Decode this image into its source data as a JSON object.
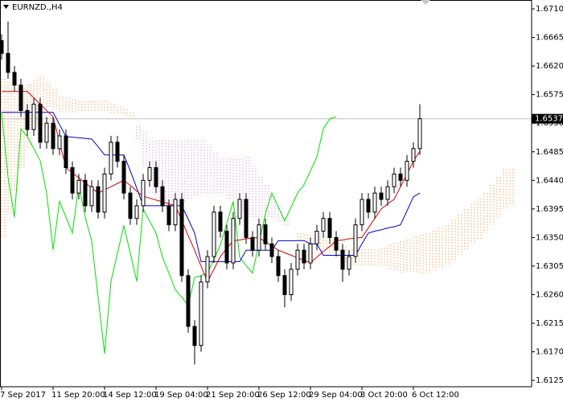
{
  "chart_data": {
    "type": "candlestick",
    "title": "EURNZD.,H4",
    "categories": [
      "7 Sep 2017",
      null,
      null,
      null,
      null,
      null,
      null,
      null,
      "11 Sep 20:00",
      null,
      null,
      null,
      null,
      null,
      null,
      null,
      "14 Sep 12:00",
      null,
      null,
      null,
      null,
      null,
      null,
      null,
      "19 Sep 04:00",
      null,
      null,
      null,
      null,
      null,
      null,
      null,
      "21 Sep 20:00",
      null,
      null,
      null,
      null,
      null,
      null,
      null,
      "26 Sep 12:00",
      null,
      null,
      null,
      null,
      null,
      null,
      null,
      "29 Sep 04:00",
      null,
      null,
      null,
      null,
      null,
      null,
      null,
      "3 Oct 20:00",
      null,
      null,
      null,
      null,
      null,
      null,
      null,
      "6 Oct 12:00",
      null,
      null,
      null,
      null,
      null,
      null,
      null,
      null,
      null,
      null,
      null,
      null,
      null,
      null,
      null
    ],
    "open": [
      1.666,
      1.664,
      1.661,
      1.659,
      1.655,
      1.652,
      1.656,
      1.65,
      1.653,
      1.649,
      1.651,
      1.646,
      1.642,
      1.644,
      1.64,
      1.643,
      1.639,
      1.645,
      1.65,
      1.647,
      1.642,
      1.638,
      1.64,
      1.644,
      1.646,
      1.643,
      1.64,
      1.637,
      1.641,
      1.629,
      1.621,
      1.618,
      1.628,
      1.632,
      1.639,
      1.636,
      1.631,
      1.638,
      1.641,
      1.635,
      1.633,
      1.637,
      1.634,
      1.632,
      1.629,
      1.626,
      1.63,
      1.633,
      1.631,
      1.634,
      1.636,
      1.638,
      1.635,
      1.633,
      1.63,
      1.632,
      1.637,
      1.641,
      1.639,
      1.642,
      1.641,
      1.643,
      1.645,
      1.644,
      1.647,
      1.649,
      null,
      null,
      null,
      null,
      null,
      null,
      null,
      null,
      null,
      null,
      null,
      null,
      null,
      null
    ],
    "high": [
      1.667,
      1.669,
      1.662,
      1.66,
      1.656,
      1.657,
      1.657,
      1.654,
      1.654,
      1.652,
      1.652,
      1.647,
      1.645,
      1.645,
      1.644,
      1.644,
      1.646,
      1.651,
      1.651,
      1.648,
      1.643,
      1.641,
      1.645,
      1.647,
      1.647,
      1.644,
      1.641,
      1.642,
      1.642,
      1.63,
      1.622,
      1.629,
      1.633,
      1.64,
      1.64,
      1.637,
      1.639,
      1.642,
      1.642,
      1.636,
      1.638,
      1.638,
      1.635,
      1.633,
      1.63,
      1.631,
      1.634,
      1.634,
      1.635,
      1.637,
      1.639,
      1.639,
      1.636,
      1.634,
      1.633,
      1.638,
      1.642,
      1.642,
      1.643,
      1.643,
      1.644,
      1.646,
      1.646,
      1.648,
      1.65,
      1.656,
      null,
      null,
      null,
      null,
      null,
      null,
      null,
      null,
      null,
      null,
      null,
      null,
      null,
      null
    ],
    "low": [
      1.663,
      1.66,
      1.658,
      1.654,
      1.651,
      1.651,
      1.649,
      1.649,
      1.648,
      1.648,
      1.645,
      1.641,
      1.641,
      1.639,
      1.639,
      1.638,
      1.638,
      1.644,
      1.646,
      1.641,
      1.637,
      1.637,
      1.639,
      1.643,
      1.642,
      1.639,
      1.636,
      1.636,
      1.628,
      1.62,
      1.615,
      1.617,
      1.627,
      1.631,
      1.635,
      1.63,
      1.63,
      1.637,
      1.634,
      1.632,
      1.632,
      1.633,
      1.631,
      1.628,
      1.624,
      1.625,
      1.629,
      1.63,
      1.63,
      1.633,
      1.635,
      1.634,
      1.632,
      1.628,
      1.629,
      1.631,
      1.636,
      1.638,
      1.638,
      1.64,
      1.64,
      1.642,
      1.643,
      1.643,
      1.646,
      1.648,
      null,
      null,
      null,
      null,
      null,
      null,
      null,
      null,
      null,
      null,
      null,
      null,
      null,
      null
    ],
    "close": [
      1.664,
      1.661,
      1.659,
      1.655,
      1.652,
      1.656,
      1.65,
      1.653,
      1.649,
      1.651,
      1.646,
      1.642,
      1.644,
      1.64,
      1.643,
      1.639,
      1.645,
      1.65,
      1.647,
      1.642,
      1.638,
      1.64,
      1.644,
      1.646,
      1.643,
      1.64,
      1.637,
      1.641,
      1.629,
      1.621,
      1.618,
      1.628,
      1.632,
      1.639,
      1.636,
      1.631,
      1.638,
      1.641,
      1.635,
      1.633,
      1.637,
      1.634,
      1.632,
      1.629,
      1.626,
      1.63,
      1.633,
      1.631,
      1.634,
      1.636,
      1.638,
      1.635,
      1.633,
      1.63,
      1.632,
      1.637,
      1.641,
      1.639,
      1.642,
      1.641,
      1.643,
      1.645,
      1.644,
      1.647,
      1.649,
      1.6537,
      null,
      null,
      null,
      null,
      null,
      null,
      null,
      null,
      null,
      null,
      null,
      null,
      null,
      null
    ],
    "candle_color": "#000000",
    "bull_fill": "#ffffff",
    "bear_fill": "#000000",
    "price_line_color": "#c0c0c0",
    "lines": [
      {
        "color": "#00e000",
        "values": [
          1.6547,
          1.6445,
          1.6382,
          1.6521,
          1.6509,
          1.649,
          1.6471,
          1.642,
          1.6331,
          1.6407,
          1.6382,
          1.6357,
          1.6433,
          1.6382,
          1.6344,
          1.6256,
          1.6167,
          1.6281,
          1.6325,
          1.6369,
          1.6325,
          1.6281,
          1.6395,
          1.6376,
          1.6357,
          1.6319,
          1.6294,
          1.6268,
          1.6256,
          1.6243,
          1.6287,
          1.629,
          1.6294,
          1.6316,
          1.6338,
          1.6372,
          1.6407,
          1.6319,
          1.6306,
          1.6294,
          1.6341,
          1.6388,
          1.642,
          1.6398,
          1.6376,
          1.6398,
          1.642,
          1.6433,
          1.6455,
          1.6477,
          1.6521,
          1.6537,
          1.654,
          null,
          null,
          null,
          null,
          null,
          null,
          null,
          null,
          null,
          null,
          null,
          null,
          null,
          null,
          null,
          null,
          null,
          null,
          null,
          null,
          null,
          null,
          null,
          null,
          null,
          null
        ]
      },
      {
        "color": "#0000cc",
        "values": [
          1.6547,
          1.6547,
          1.6547,
          1.6547,
          1.6547,
          1.6547,
          1.6547,
          1.6547,
          1.6547,
          1.6528,
          1.6509,
          1.6508,
          1.6507,
          1.6506,
          1.6505,
          1.6493,
          1.648,
          1.648,
          1.648,
          1.648,
          1.6455,
          1.6428,
          1.64,
          1.64,
          1.64,
          1.64,
          1.64,
          1.64,
          1.64,
          1.6379,
          1.6357,
          1.6312,
          1.6312,
          1.6312,
          1.6312,
          1.6312,
          1.6312,
          1.6312,
          1.633,
          1.633,
          1.633,
          1.633,
          1.633,
          1.6345,
          1.6345,
          1.6345,
          1.6345,
          1.6345,
          1.634,
          1.634,
          1.6322,
          1.6322,
          1.6322,
          1.6322,
          1.6322,
          1.6322,
          1.634,
          1.6357,
          1.636,
          1.6362,
          1.6365,
          1.6367,
          1.637,
          1.6392,
          1.6414,
          1.642,
          null,
          null,
          null,
          null,
          null,
          null,
          null,
          null,
          null,
          null,
          null,
          null,
          null,
          null
        ]
      },
      {
        "color": "#dd0000",
        "values": [
          1.658,
          1.658,
          1.658,
          1.658,
          1.658,
          1.657,
          1.656,
          1.655,
          1.654,
          1.65,
          1.646,
          1.6452,
          1.6444,
          1.6436,
          1.6428,
          1.642,
          1.6425,
          1.643,
          1.6435,
          1.644,
          1.6432,
          1.6423,
          1.6415,
          1.6412,
          1.6409,
          1.6406,
          1.6403,
          1.64,
          1.6377,
          1.6353,
          1.633,
          1.6305,
          1.628,
          1.63,
          1.632,
          1.6333,
          1.6345,
          1.6346,
          1.6348,
          1.6349,
          1.635,
          1.6343,
          1.6337,
          1.633,
          1.6326,
          1.6322,
          1.6318,
          1.6314,
          1.631,
          1.6319,
          1.6328,
          1.6336,
          1.6345,
          1.6346,
          1.6348,
          1.6349,
          1.635,
          1.6365,
          1.638,
          1.6395,
          1.6403,
          1.641,
          1.643,
          1.645,
          1.647,
          1.6486,
          null,
          null,
          null,
          null,
          null,
          null,
          null,
          null,
          null,
          null,
          null,
          null,
          null,
          null
        ]
      }
    ],
    "cloud": {
      "span_a": {
        "color": "#f4a460",
        "values": [
          1.66,
          1.6595,
          1.659,
          1.6585,
          1.6591,
          1.6598,
          1.6604,
          1.6593,
          1.6583,
          1.6572,
          1.657,
          1.6567,
          1.6565,
          1.6565,
          1.6565,
          1.6565,
          1.6565,
          1.6561,
          1.6556,
          1.6552,
          1.6547,
          1.6505,
          1.6462,
          1.642,
          1.6408,
          1.6395,
          1.6399,
          1.6403,
          1.6407,
          1.6411,
          1.6416,
          1.642,
          1.642,
          1.642,
          1.642,
          1.6411,
          1.6401,
          1.6392,
          1.6382,
          1.6382,
          1.6382,
          1.6382,
          1.6382,
          1.6376,
          1.637,
          1.6363,
          1.6357,
          1.6355,
          1.6354,
          1.6352,
          1.635,
          1.6345,
          1.6341,
          1.6336,
          1.6331,
          1.6331,
          1.6331,
          1.6331,
          1.6331,
          1.6334,
          1.6338,
          1.6341,
          1.6344,
          1.6347,
          1.6351,
          1.6354,
          1.6357,
          1.6361,
          1.6365,
          1.6369,
          1.6378,
          1.6386,
          1.6395,
          1.6403,
          1.6412,
          1.642,
          1.6433,
          1.6445,
          1.6458,
          1.6458
        ]
      },
      "span_b": {
        "color": "#d8a0d8",
        "values": [
          1.635,
          1.6386,
          1.6422,
          1.6458,
          1.6492,
          1.6525,
          1.6559,
          1.6555,
          1.6551,
          1.6547,
          1.6547,
          1.6547,
          1.6547,
          1.6547,
          1.6547,
          1.6547,
          1.6547,
          1.6545,
          1.6544,
          1.6542,
          1.654,
          1.6528,
          1.6517,
          1.6505,
          1.6505,
          1.6505,
          1.6505,
          1.6505,
          1.6505,
          1.6505,
          1.6505,
          1.6505,
          1.6496,
          1.6486,
          1.6477,
          1.6477,
          1.6477,
          1.6477,
          1.6477,
          1.6463,
          1.6449,
          1.6434,
          1.642,
          1.6401,
          1.6382,
          1.6363,
          1.6344,
          1.6341,
          1.6337,
          1.6334,
          1.6331,
          1.6325,
          1.6319,
          1.6312,
          1.6306,
          1.6306,
          1.6306,
          1.6306,
          1.6306,
          1.6303,
          1.63,
          1.6297,
          1.6294,
          1.6294,
          1.6294,
          1.6294,
          1.6294,
          1.6298,
          1.6302,
          1.6306,
          1.6314,
          1.6323,
          1.6331,
          1.634,
          1.6348,
          1.6357,
          1.637,
          1.6382,
          1.6395,
          1.64
        ]
      }
    },
    "ylim": [
      1.6115,
      1.6724
    ],
    "yticks": [
      {
        "value": 1.671,
        "label": "1.6710"
      },
      1.6665,
      {
        "value": 1.662,
        "label": "1.6620"
      },
      1.6575,
      {
        "value": 1.653,
        "label": "1.6530"
      },
      1.6485,
      {
        "value": 1.644,
        "label": "1.6440"
      },
      1.6395,
      {
        "value": 1.635,
        "label": "1.6350"
      },
      1.6305,
      {
        "value": 1.626,
        "label": "1.6260"
      },
      1.6215,
      {
        "value": 1.617,
        "label": "1.6170"
      },
      1.6125
    ]
  }
}
